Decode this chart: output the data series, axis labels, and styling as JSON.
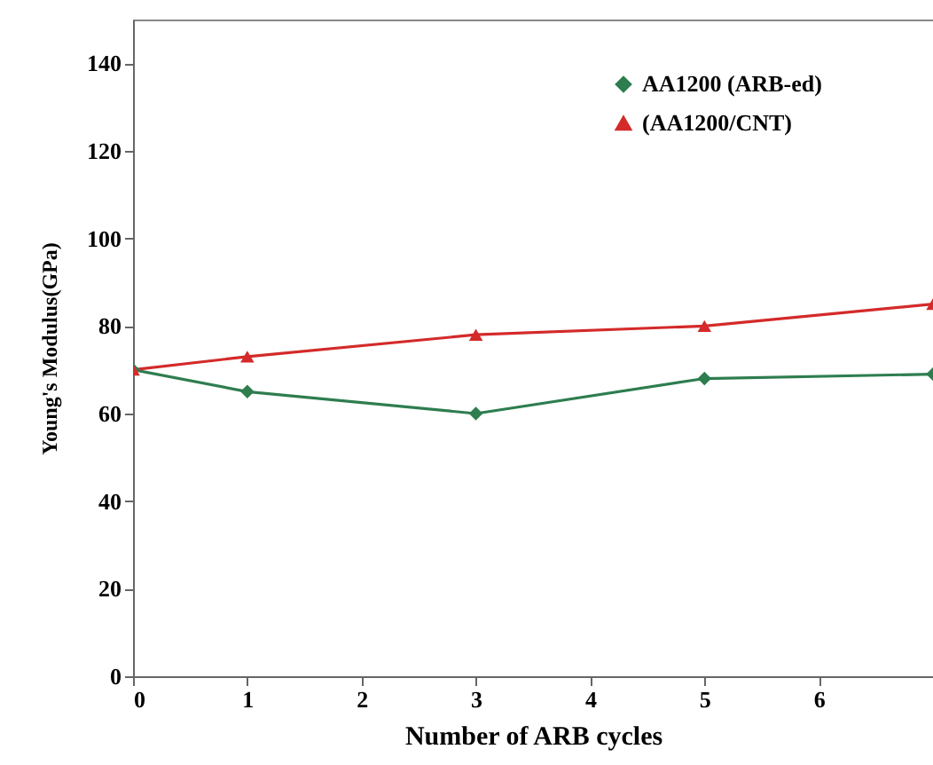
{
  "chart_data": {
    "type": "line",
    "xlabel": "Number of ARB cycles",
    "ylabel": "Young's Modulus(GPa)",
    "x": [
      0,
      1,
      3,
      5,
      7
    ],
    "series": [
      {
        "name": "AA1200 (ARB-ed)",
        "color": "#2e7d4f",
        "marker": "diamond",
        "values": [
          70,
          65,
          60,
          68,
          69
        ]
      },
      {
        "name": "(AA1200/CNT)",
        "color": "#d42a2a",
        "marker": "triangle",
        "values": [
          70,
          73,
          78,
          80,
          85
        ]
      }
    ],
    "xlim": [
      0,
      7
    ],
    "xticks": [
      0,
      1,
      2,
      3,
      4,
      5,
      6
    ],
    "ylim": [
      0,
      150
    ],
    "yticks": [
      0,
      20,
      40,
      60,
      80,
      100,
      120,
      140
    ],
    "grid": false,
    "legend": "top right",
    "line_style": "solid"
  }
}
